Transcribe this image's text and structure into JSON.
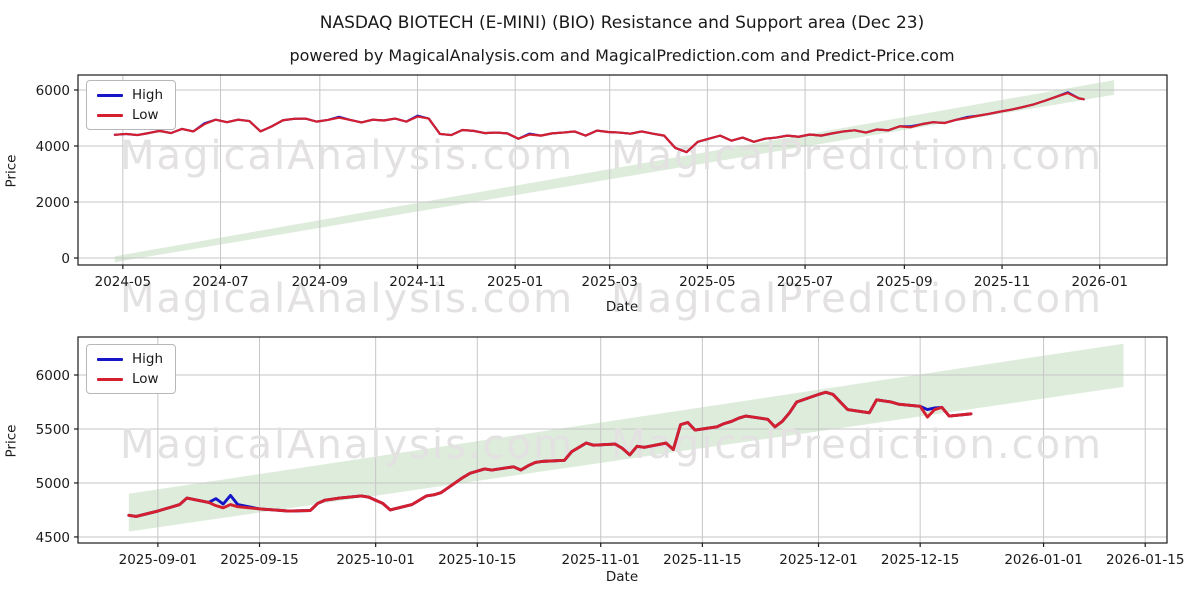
{
  "figure": {
    "title": "NASDAQ BIOTECH (E-MINI) (BIO) Resistance and Support area (Dec 23)",
    "subtitle": "powered by MagicalAnalysis.com and MagicalPrediction.com and Predict-Price.com"
  },
  "colors": {
    "high": "#1616c8",
    "low": "#d41f2f",
    "band": "#ddecdb",
    "grid": "#c6c6c6",
    "spine": "#1a1a1a",
    "watermark": "#e3e1e1",
    "text": "#1a1a1a"
  },
  "legend": {
    "high_label": "High",
    "low_label": "Low"
  },
  "watermarks": {
    "texts": [
      "MagicalAnalysis.com",
      "MagicalPrediction.com"
    ]
  },
  "chart_data": [
    {
      "type": "line",
      "name": "resistance-support-overview",
      "xlabel": "Date",
      "ylabel": "Price",
      "grid": true,
      "legend_position": "upper left",
      "x_range": [
        "2024-04-03",
        "2026-02-12"
      ],
      "y_range": [
        -250,
        6535
      ],
      "y_ticks": [
        0,
        2000,
        4000,
        6000
      ],
      "x_ticks": [
        {
          "date": "2024-05-01",
          "label": "2024-05"
        },
        {
          "date": "2024-07-01",
          "label": "2024-07"
        },
        {
          "date": "2024-09-01",
          "label": "2024-09"
        },
        {
          "date": "2024-11-01",
          "label": "2024-11"
        },
        {
          "date": "2025-01-01",
          "label": "2025-01"
        },
        {
          "date": "2025-03-01",
          "label": "2025-03"
        },
        {
          "date": "2025-05-01",
          "label": "2025-05"
        },
        {
          "date": "2025-07-01",
          "label": "2025-07"
        },
        {
          "date": "2025-09-01",
          "label": "2025-09"
        },
        {
          "date": "2025-11-01",
          "label": "2025-11"
        },
        {
          "date": "2026-01-01",
          "label": "2026-01"
        }
      ],
      "band": {
        "label": "support-resistance-area",
        "x": [
          "2024-04-26",
          "2026-01-10"
        ],
        "bottom": [
          -150,
          5830
        ],
        "top": [
          60,
          6350
        ]
      },
      "dates": [
        "2024-04-26",
        "2024-05-03",
        "2024-05-10",
        "2024-05-17",
        "2024-05-24",
        "2024-05-31",
        "2024-06-07",
        "2024-06-14",
        "2024-06-21",
        "2024-06-28",
        "2024-07-05",
        "2024-07-12",
        "2024-07-19",
        "2024-07-26",
        "2024-08-02",
        "2024-08-09",
        "2024-08-16",
        "2024-08-23",
        "2024-08-30",
        "2024-09-06",
        "2024-09-13",
        "2024-09-20",
        "2024-09-27",
        "2024-10-04",
        "2024-10-11",
        "2024-10-18",
        "2024-10-25",
        "2024-11-01",
        "2024-11-08",
        "2024-11-15",
        "2024-11-22",
        "2024-11-29",
        "2024-12-06",
        "2024-12-13",
        "2024-12-20",
        "2024-12-27",
        "2025-01-03",
        "2025-01-10",
        "2025-01-17",
        "2025-01-24",
        "2025-01-31",
        "2025-02-07",
        "2025-02-14",
        "2025-02-21",
        "2025-02-28",
        "2025-03-07",
        "2025-03-14",
        "2025-03-21",
        "2025-03-28",
        "2025-04-04",
        "2025-04-11",
        "2025-04-18",
        "2025-04-25",
        "2025-05-02",
        "2025-05-09",
        "2025-05-16",
        "2025-05-23",
        "2025-05-30",
        "2025-06-06",
        "2025-06-13",
        "2025-06-20",
        "2025-06-27",
        "2025-07-04",
        "2025-07-11",
        "2025-07-18",
        "2025-07-25",
        "2025-08-01",
        "2025-08-08",
        "2025-08-15",
        "2025-08-22",
        "2025-08-29",
        "2025-09-05",
        "2025-09-12",
        "2025-09-19",
        "2025-09-26",
        "2025-10-03",
        "2025-10-10",
        "2025-10-17",
        "2025-10-24",
        "2025-10-31",
        "2025-11-07",
        "2025-11-14",
        "2025-11-21",
        "2025-11-28",
        "2025-12-05",
        "2025-12-12",
        "2025-12-19",
        "2025-12-22"
      ],
      "series": [
        {
          "name": "High",
          "color": "#1616c8",
          "width": 2.2,
          "values": [
            4400,
            4430,
            4390,
            4460,
            4540,
            4460,
            4610,
            4520,
            4810,
            4940,
            4850,
            4940,
            4890,
            4520,
            4700,
            4920,
            4970,
            4980,
            4870,
            4930,
            5040,
            4930,
            4840,
            4940,
            4910,
            4980,
            4870,
            5080,
            4980,
            4430,
            4390,
            4570,
            4540,
            4460,
            4480,
            4450,
            4260,
            4440,
            4370,
            4450,
            4480,
            4520,
            4370,
            4550,
            4500,
            4480,
            4440,
            4520,
            4440,
            4370,
            3930,
            3780,
            4150,
            4260,
            4370,
            4190,
            4300,
            4150,
            4260,
            4300,
            4370,
            4330,
            4410,
            4370,
            4450,
            4520,
            4560,
            4480,
            4590,
            4560,
            4700,
            4700,
            4780,
            4850,
            4820,
            4930,
            5030,
            5080,
            5150,
            5230,
            5300,
            5390,
            5490,
            5620,
            5760,
            5915,
            5700,
            5670
          ]
        },
        {
          "name": "Low",
          "color": "#d41f2f",
          "width": 2.2,
          "values": [
            4400,
            4430,
            4390,
            4460,
            4540,
            4460,
            4610,
            4520,
            4780,
            4940,
            4850,
            4940,
            4890,
            4520,
            4700,
            4920,
            4970,
            4980,
            4870,
            4930,
            5010,
            4930,
            4840,
            4940,
            4910,
            4980,
            4870,
            5050,
            4980,
            4430,
            4390,
            4570,
            4540,
            4460,
            4480,
            4450,
            4260,
            4410,
            4370,
            4450,
            4480,
            4520,
            4370,
            4550,
            4500,
            4480,
            4440,
            4520,
            4440,
            4370,
            3930,
            3780,
            4150,
            4260,
            4370,
            4190,
            4300,
            4150,
            4260,
            4300,
            4370,
            4330,
            4410,
            4370,
            4450,
            4520,
            4560,
            4480,
            4590,
            4560,
            4700,
            4670,
            4780,
            4850,
            4820,
            4930,
            5000,
            5080,
            5150,
            5230,
            5300,
            5390,
            5490,
            5620,
            5760,
            5890,
            5700,
            5670
          ]
        }
      ]
    },
    {
      "type": "line",
      "name": "resistance-support-zoomed",
      "xlabel": "Date",
      "ylabel": "Price",
      "grid": true,
      "legend_position": "upper left",
      "x_range": [
        "2025-08-21",
        "2026-01-18"
      ],
      "y_range": [
        4444,
        6352
      ],
      "y_ticks": [
        4500,
        5000,
        5500,
        6000
      ],
      "x_ticks": [
        {
          "date": "2025-09-01",
          "label": "2025-09-01"
        },
        {
          "date": "2025-09-15",
          "label": "2025-09-15"
        },
        {
          "date": "2025-10-01",
          "label": "2025-10-01"
        },
        {
          "date": "2025-10-15",
          "label": "2025-10-15"
        },
        {
          "date": "2025-11-01",
          "label": "2025-11-01"
        },
        {
          "date": "2025-11-15",
          "label": "2025-11-15"
        },
        {
          "date": "2025-12-01",
          "label": "2025-12-01"
        },
        {
          "date": "2025-12-15",
          "label": "2025-12-15"
        },
        {
          "date": "2026-01-01",
          "label": "2026-01-01"
        },
        {
          "date": "2026-01-15",
          "label": "2026-01-15"
        }
      ],
      "band": {
        "label": "support-resistance-area",
        "x": [
          "2025-08-28",
          "2026-01-12"
        ],
        "bottom": [
          4550,
          5890
        ],
        "top": [
          4900,
          6290
        ]
      },
      "dates": [
        "2025-08-28",
        "2025-08-29",
        "2025-09-01",
        "2025-09-02",
        "2025-09-03",
        "2025-09-04",
        "2025-09-05",
        "2025-09-08",
        "2025-09-09",
        "2025-09-10",
        "2025-09-11",
        "2025-09-12",
        "2025-09-15",
        "2025-09-16",
        "2025-09-17",
        "2025-09-18",
        "2025-09-19",
        "2025-09-22",
        "2025-09-23",
        "2025-09-24",
        "2025-09-25",
        "2025-09-26",
        "2025-09-29",
        "2025-09-30",
        "2025-10-01",
        "2025-10-02",
        "2025-10-03",
        "2025-10-06",
        "2025-10-07",
        "2025-10-08",
        "2025-10-09",
        "2025-10-10",
        "2025-10-13",
        "2025-10-14",
        "2025-10-15",
        "2025-10-16",
        "2025-10-17",
        "2025-10-20",
        "2025-10-21",
        "2025-10-22",
        "2025-10-23",
        "2025-10-24",
        "2025-10-27",
        "2025-10-28",
        "2025-10-29",
        "2025-10-30",
        "2025-10-31",
        "2025-11-03",
        "2025-11-04",
        "2025-11-05",
        "2025-11-06",
        "2025-11-07",
        "2025-11-10",
        "2025-11-11",
        "2025-11-12",
        "2025-11-13",
        "2025-11-14",
        "2025-11-17",
        "2025-11-18",
        "2025-11-19",
        "2025-11-20",
        "2025-11-21",
        "2025-11-24",
        "2025-11-25",
        "2025-11-26",
        "2025-11-27",
        "2025-11-28",
        "2025-12-01",
        "2025-12-02",
        "2025-12-03",
        "2025-12-04",
        "2025-12-05",
        "2025-12-08",
        "2025-12-09",
        "2025-12-10",
        "2025-12-11",
        "2025-12-12",
        "2025-12-15",
        "2025-12-16",
        "2025-12-17",
        "2025-12-18",
        "2025-12-19",
        "2025-12-22"
      ],
      "series": [
        {
          "name": "High",
          "color": "#1616c8",
          "width": 2.9,
          "values": [
            4700,
            4690,
            4740,
            4760,
            4780,
            4800,
            4860,
            4820,
            4855,
            4805,
            4885,
            4800,
            4760,
            4755,
            4750,
            4745,
            4740,
            4745,
            4810,
            4840,
            4850,
            4860,
            4880,
            4870,
            4840,
            4810,
            4750,
            4800,
            4840,
            4880,
            4890,
            4910,
            5050,
            5090,
            5110,
            5130,
            5120,
            5150,
            5120,
            5160,
            5190,
            5200,
            5210,
            5290,
            5330,
            5370,
            5350,
            5360,
            5320,
            5260,
            5340,
            5330,
            5370,
            5310,
            5540,
            5560,
            5490,
            5520,
            5550,
            5570,
            5600,
            5620,
            5590,
            5520,
            5570,
            5650,
            5750,
            5820,
            5840,
            5820,
            5750,
            5680,
            5650,
            5770,
            5760,
            5750,
            5730,
            5710,
            5680,
            5695,
            5700,
            5620,
            5640
          ]
        },
        {
          "name": "Low",
          "color": "#d41f2f",
          "width": 2.9,
          "values": [
            4700,
            4690,
            4740,
            4760,
            4780,
            4800,
            4860,
            4820,
            4790,
            4770,
            4800,
            4780,
            4760,
            4755,
            4750,
            4745,
            4740,
            4745,
            4810,
            4840,
            4850,
            4860,
            4880,
            4870,
            4840,
            4810,
            4750,
            4800,
            4840,
            4880,
            4890,
            4910,
            5050,
            5090,
            5110,
            5130,
            5120,
            5150,
            5120,
            5160,
            5190,
            5200,
            5210,
            5290,
            5330,
            5370,
            5350,
            5360,
            5320,
            5260,
            5340,
            5330,
            5370,
            5310,
            5540,
            5560,
            5490,
            5520,
            5550,
            5570,
            5600,
            5620,
            5590,
            5520,
            5570,
            5650,
            5750,
            5820,
            5840,
            5820,
            5750,
            5680,
            5650,
            5770,
            5760,
            5750,
            5730,
            5710,
            5610,
            5680,
            5700,
            5620,
            5640
          ]
        }
      ]
    }
  ]
}
